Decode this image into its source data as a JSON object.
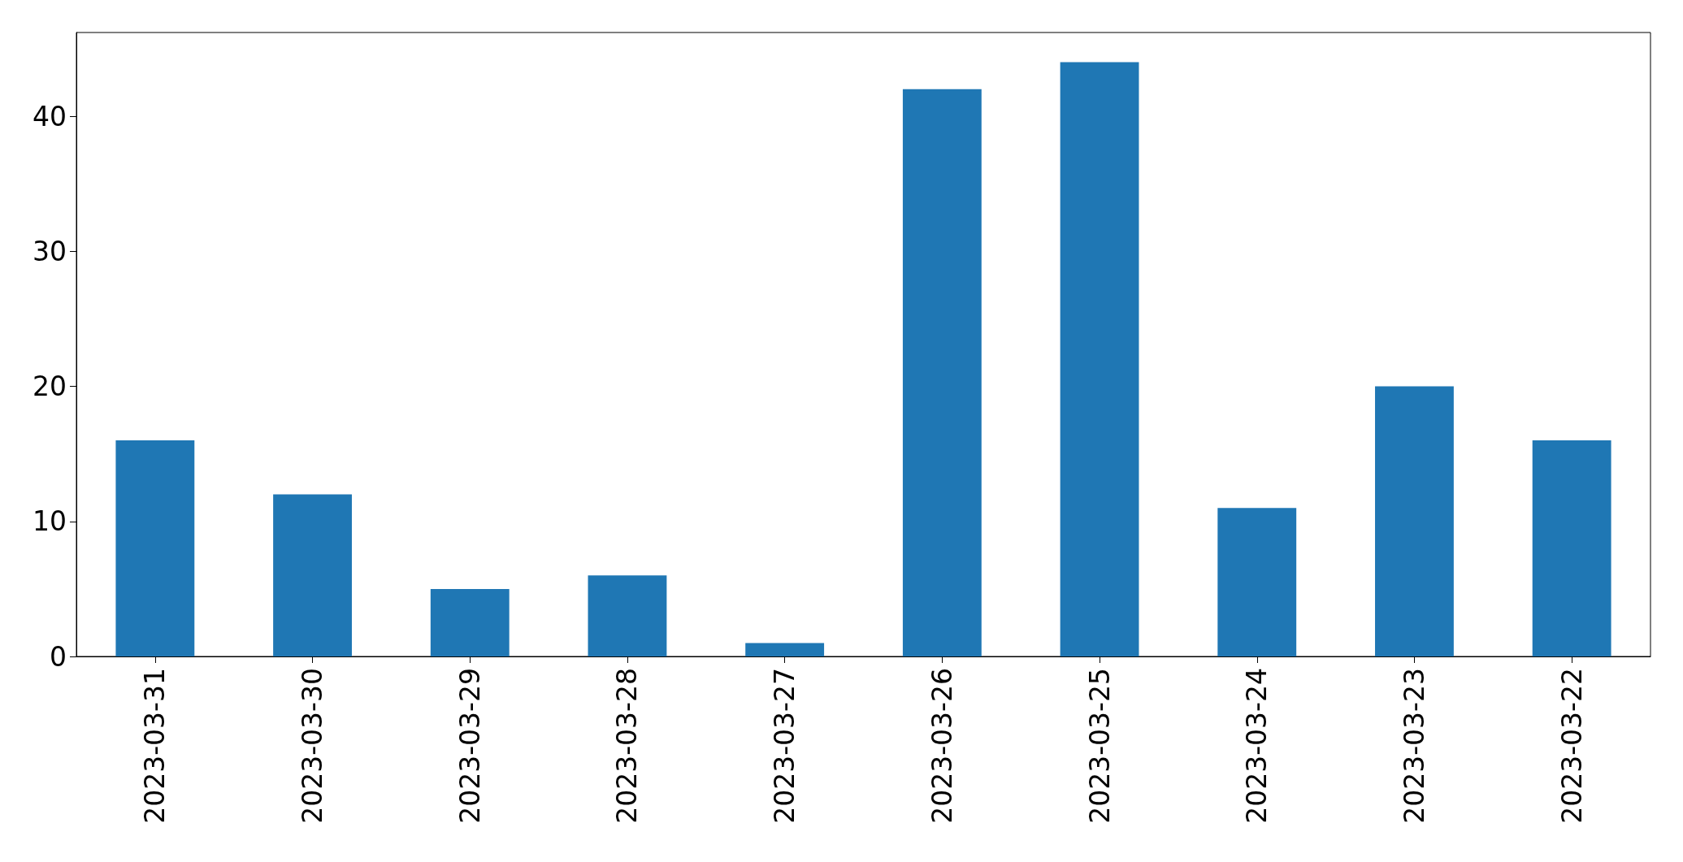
{
  "chart_data": {
    "type": "bar",
    "categories": [
      "2023-03-31",
      "2023-03-30",
      "2023-03-29",
      "2023-03-28",
      "2023-03-27",
      "2023-03-26",
      "2023-03-25",
      "2023-03-24",
      "2023-03-23",
      "2023-03-22"
    ],
    "values": [
      16,
      12,
      5,
      6,
      1,
      42,
      44,
      11,
      20,
      16
    ],
    "color": "#1f77b4",
    "ylim": [
      0,
      46.2
    ],
    "yticks": [
      0,
      10,
      20,
      30,
      40
    ],
    "grid": false
  }
}
